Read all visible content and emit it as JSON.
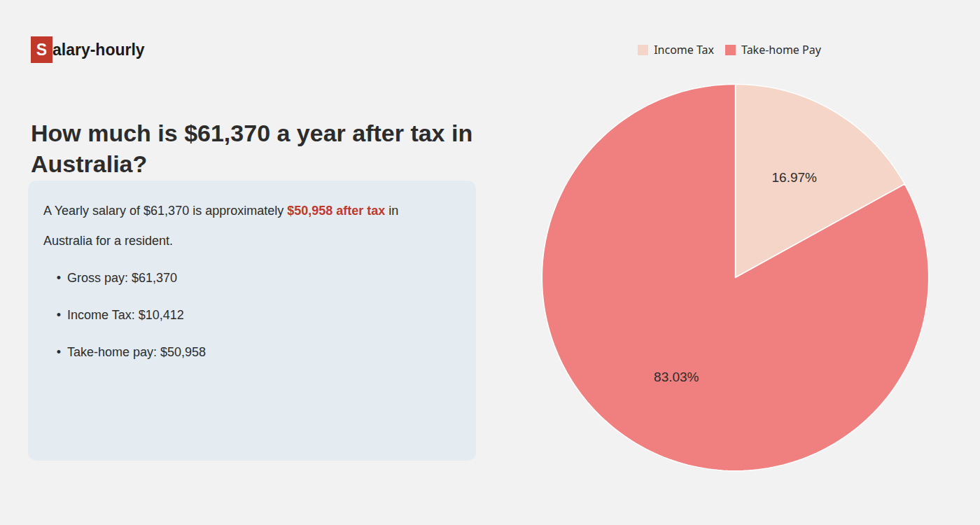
{
  "chart_data": {
    "type": "pie",
    "title": "How much is $61,370 a year after tax in\nAustralia?",
    "categories": [
      "Income Tax",
      "Take-home Pay"
    ],
    "values": [
      16.97,
      83.03
    ],
    "value_labels": [
      "16.97%",
      "83.03%"
    ],
    "colors": [
      "#f5d5c8",
      "#f08080"
    ],
    "data_labels": true,
    "legend": "top",
    "annotations": [
      [
        {
          "text": "S",
          "background": "#c0392b"
        },
        {
          "text": "alary-hourly"
        }
      ],
      [
        {
          "text": "A Yearly salary of $61,370 is approximately "
        },
        {
          "text": "$50,958 after tax",
          "color": "#c0392b"
        },
        {
          "text": " in"
        }
      ],
      [
        {
          "text": "Australia for a resident."
        }
      ],
      [
        {
          "text": "•"
        },
        {
          "text": "Gross pay: $61,370"
        }
      ],
      [
        {
          "text": "•"
        },
        {
          "text": "Income Tax: $10,412"
        }
      ],
      [
        {
          "text": "•"
        },
        {
          "text": "Take-home pay: $50,958"
        }
      ]
    ]
  }
}
